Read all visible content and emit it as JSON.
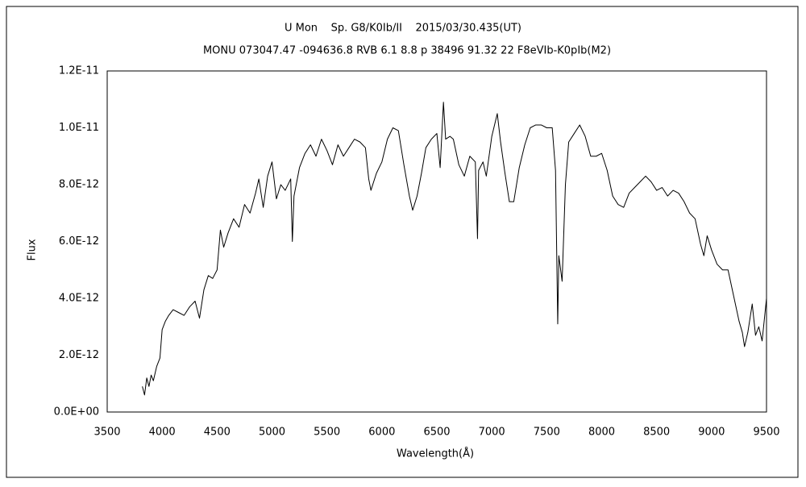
{
  "chart_data": {
    "type": "line",
    "title": "U Mon    Sp. G8/K0Ib/II    2015/03/30.435(UT)",
    "subtitle": "MONU 073047.47 -094636.8 RVB 6.1 8.8 p 38496 91.32 22 F8eVIb-K0pIb(M2)",
    "x_label": "Wavelength(Å)",
    "y_label": "Flux",
    "color": "#000000",
    "xlim": [
      3500,
      9500
    ],
    "xticks": [
      3500,
      4000,
      4500,
      5000,
      5500,
      6000,
      6500,
      7000,
      7500,
      8000,
      8500,
      9000,
      9500
    ],
    "ylim": [
      0,
      1.2e-11
    ],
    "yticks": [
      {
        "value": 0,
        "label": "0.0E+00"
      },
      {
        "value": 2e-12,
        "label": "2.0E-12"
      },
      {
        "value": 4e-12,
        "label": "4.0E-12"
      },
      {
        "value": 6e-12,
        "label": "6.0E-12"
      },
      {
        "value": 8e-12,
        "label": "8.0E-12"
      },
      {
        "value": 1e-11,
        "label": "1.0E-11"
      },
      {
        "value": 1.2e-11,
        "label": "1.2E-11"
      }
    ],
    "grid": false,
    "x": [
      3820,
      3840,
      3860,
      3880,
      3900,
      3920,
      3950,
      3980,
      4000,
      4030,
      4060,
      4100,
      4150,
      4200,
      4250,
      4300,
      4340,
      4380,
      4420,
      4460,
      4500,
      4530,
      4560,
      4600,
      4650,
      4700,
      4750,
      4800,
      4850,
      4880,
      4920,
      4960,
      5000,
      5040,
      5080,
      5120,
      5170,
      5185,
      5200,
      5250,
      5300,
      5350,
      5400,
      5450,
      5500,
      5550,
      5600,
      5650,
      5700,
      5750,
      5800,
      5850,
      5880,
      5900,
      5950,
      6000,
      6050,
      6100,
      6150,
      6200,
      6250,
      6280,
      6320,
      6360,
      6400,
      6450,
      6500,
      6530,
      6560,
      6580,
      6620,
      6650,
      6700,
      6750,
      6800,
      6850,
      6870,
      6880,
      6920,
      6950,
      7000,
      7050,
      7080,
      7120,
      7160,
      7200,
      7250,
      7300,
      7350,
      7400,
      7450,
      7500,
      7550,
      7580,
      7600,
      7610,
      7640,
      7670,
      7700,
      7750,
      7800,
      7850,
      7900,
      7950,
      8000,
      8050,
      8100,
      8150,
      8200,
      8250,
      8300,
      8350,
      8400,
      8450,
      8500,
      8550,
      8600,
      8650,
      8700,
      8750,
      8800,
      8850,
      8900,
      8930,
      8960,
      9000,
      9050,
      9100,
      9150,
      9200,
      9250,
      9280,
      9300,
      9330,
      9370,
      9400,
      9430,
      9460,
      9500
    ],
    "values": [
      9e-13,
      6e-13,
      1.2e-12,
      9e-13,
      1.3e-12,
      1.1e-12,
      1.6e-12,
      1.9e-12,
      2.9e-12,
      3.2e-12,
      3.4e-12,
      3.6e-12,
      3.5e-12,
      3.4e-12,
      3.7e-12,
      3.9e-12,
      3.3e-12,
      4.3e-12,
      4.8e-12,
      4.7e-12,
      5e-12,
      6.4e-12,
      5.8e-12,
      6.3e-12,
      6.8e-12,
      6.5e-12,
      7.3e-12,
      7e-12,
      7.7e-12,
      8.2e-12,
      7.2e-12,
      8.3e-12,
      8.8e-12,
      7.5e-12,
      8e-12,
      7.8e-12,
      8.2e-12,
      6e-12,
      7.6e-12,
      8.6e-12,
      9.1e-12,
      9.4e-12,
      9e-12,
      9.6e-12,
      9.2e-12,
      8.7e-12,
      9.4e-12,
      9e-12,
      9.3e-12,
      9.6e-12,
      9.5e-12,
      9.3e-12,
      8.2e-12,
      7.8e-12,
      8.4e-12,
      8.8e-12,
      9.6e-12,
      1e-11,
      9.9e-12,
      8.7e-12,
      7.6e-12,
      7.1e-12,
      7.6e-12,
      8.4e-12,
      9.3e-12,
      9.6e-12,
      9.8e-12,
      8.6e-12,
      1.09e-11,
      9.6e-12,
      9.7e-12,
      9.6e-12,
      8.7e-12,
      8.3e-12,
      9e-12,
      8.8e-12,
      6.1e-12,
      8.5e-12,
      8.8e-12,
      8.3e-12,
      9.7e-12,
      1.05e-11,
      9.5e-12,
      8.4e-12,
      7.4e-12,
      7.4e-12,
      8.6e-12,
      9.4e-12,
      1e-11,
      1.01e-11,
      1.01e-11,
      1e-11,
      1e-11,
      8.5e-12,
      3.1e-12,
      5.5e-12,
      4.6e-12,
      8e-12,
      9.5e-12,
      9.8e-12,
      1.01e-11,
      9.7e-12,
      9e-12,
      9e-12,
      9.1e-12,
      8.5e-12,
      7.6e-12,
      7.3e-12,
      7.2e-12,
      7.7e-12,
      7.9e-12,
      8.1e-12,
      8.3e-12,
      8.1e-12,
      7.8e-12,
      7.9e-12,
      7.6e-12,
      7.8e-12,
      7.7e-12,
      7.4e-12,
      7e-12,
      6.8e-12,
      5.9e-12,
      5.5e-12,
      6.2e-12,
      5.7e-12,
      5.2e-12,
      5e-12,
      5e-12,
      4.1e-12,
      3.2e-12,
      2.8e-12,
      2.3e-12,
      2.8e-12,
      3.8e-12,
      2.7e-12,
      3e-12,
      2.5e-12,
      4e-12
    ]
  }
}
